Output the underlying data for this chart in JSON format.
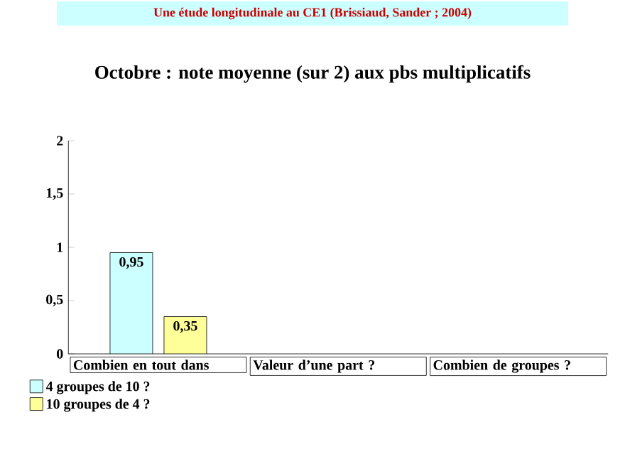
{
  "chart_data": {
    "type": "bar",
    "title": "Une étude longitudinale au CE1 (Brissiaud, Sander ; 2004)",
    "subtitle": "Octobre : note moyenne (sur 2) aux pbs multiplicatifs",
    "categories": [
      "Combien en tout dans",
      "Valeur d’une part ?",
      "Combien de groupes ?"
    ],
    "series": [
      {
        "name": "4 groupes de 10 ?",
        "color": "#ccffff",
        "values": [
          0.95,
          null,
          null
        ],
        "value_labels": [
          "0,95",
          null,
          null
        ]
      },
      {
        "name": "10 groupes de 4 ?",
        "color": "#ffff99",
        "values": [
          0.35,
          null,
          null
        ],
        "value_labels": [
          "0,35",
          null,
          null
        ]
      }
    ],
    "ylim": [
      0,
      2
    ],
    "yticks": [
      0,
      {
        "value": 0.5,
        "label": "0,5"
      },
      1,
      {
        "value": 1.5,
        "label": "1,5"
      },
      2
    ],
    "legend": "bottom left"
  }
}
